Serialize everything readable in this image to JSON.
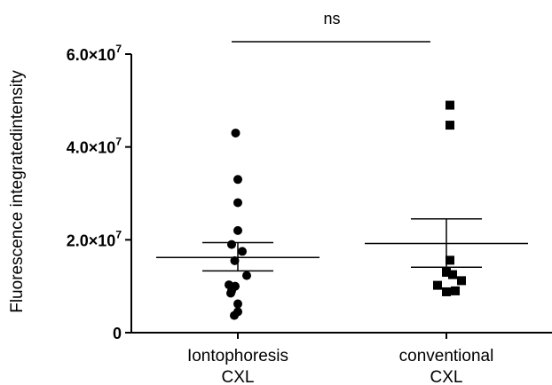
{
  "chart_data": {
    "type": "scatter",
    "ylabel": "Fluorescence integratedintensity",
    "ylim": [
      0,
      60000000
    ],
    "yticks": [
      {
        "value": 0,
        "mantissa": "0",
        "exponent": ""
      },
      {
        "value": 20000000,
        "mantissa": "2.0×10",
        "exponent": "7"
      },
      {
        "value": 40000000,
        "mantissa": "4.0×10",
        "exponent": "7"
      },
      {
        "value": 60000000,
        "mantissa": "6.0×10",
        "exponent": "7"
      }
    ],
    "categories": [
      {
        "line1": "Iontophoresis",
        "line2": "CXL"
      },
      {
        "line1": "conventional",
        "line2": "CXL"
      }
    ],
    "groups": [
      {
        "marker": "circle",
        "mean": 16200000,
        "sem_upper": 19400000,
        "sem_lower": 13300000,
        "points": [
          {
            "dx": -0.025,
            "y": 43000000
          },
          {
            "dx": 0,
            "y": 33000000
          },
          {
            "dx": 0,
            "y": 28000000
          },
          {
            "dx": 0,
            "y": 22000000
          },
          {
            "dx": -0.07,
            "y": 19000000
          },
          {
            "dx": 0.05,
            "y": 17500000
          },
          {
            "dx": -0.035,
            "y": 15500000
          },
          {
            "dx": 0.1,
            "y": 12300000
          },
          {
            "dx": -0.1,
            "y": 10300000
          },
          {
            "dx": -0.03,
            "y": 10000000
          },
          {
            "dx": -0.07,
            "y": 9000000
          },
          {
            "dx": -0.08,
            "y": 8500000
          },
          {
            "dx": 0,
            "y": 6200000
          },
          {
            "dx": 0,
            "y": 4500000
          },
          {
            "dx": -0.04,
            "y": 3700000
          }
        ]
      },
      {
        "marker": "square",
        "mean": 19200000,
        "sem_upper": 24500000,
        "sem_lower": 14100000,
        "points": [
          {
            "dx": 0.04,
            "y": 49000000
          },
          {
            "dx": 0.04,
            "y": 44700000
          },
          {
            "dx": 0.04,
            "y": 15600000
          },
          {
            "dx": 0,
            "y": 13000000
          },
          {
            "dx": 0.07,
            "y": 12500000
          },
          {
            "dx": 0.17,
            "y": 11200000
          },
          {
            "dx": -0.1,
            "y": 10200000
          },
          {
            "dx": 0.1,
            "y": 9000000
          },
          {
            "dx": 0,
            "y": 8800000
          }
        ]
      }
    ],
    "significance": {
      "label": "ns"
    }
  }
}
